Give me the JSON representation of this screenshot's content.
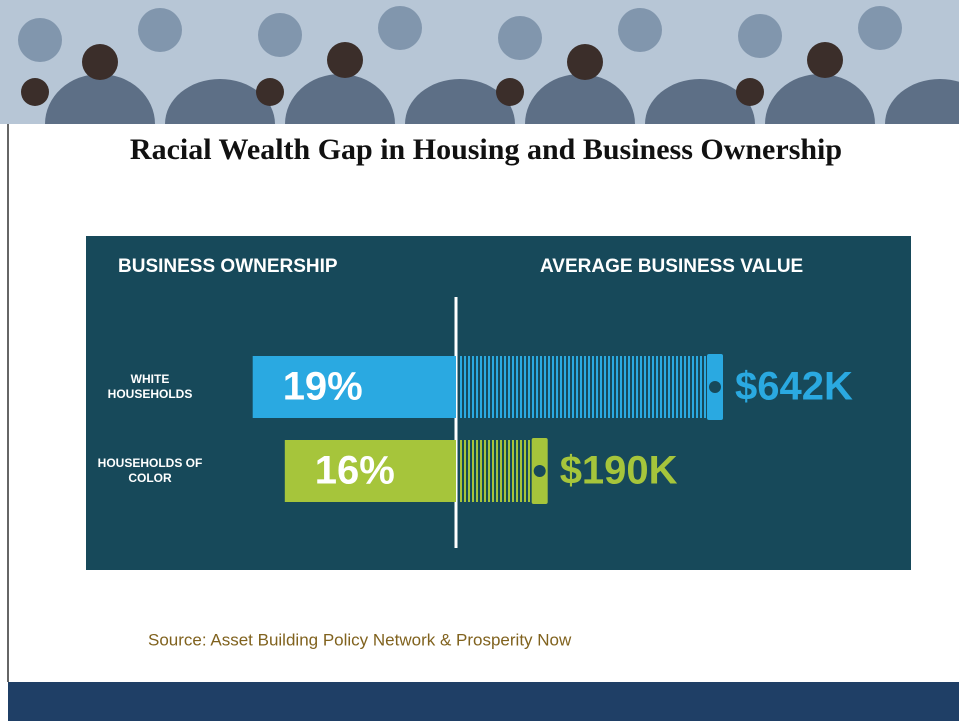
{
  "title": "Racial Wealth Gap in Housing and Business Ownership",
  "source": "Source:  Asset Building Policy Network & Prosperity Now",
  "chart_data": {
    "type": "bar",
    "categories": [
      "WHITE HOUSEHOLDS",
      "HOUSEHOLDS OF COLOR"
    ],
    "series": [
      {
        "name": "BUSINESS OWNERSHIP",
        "colors": [
          "#2aa9e1",
          "#a6c53b"
        ],
        "values": [
          19,
          16
        ],
        "value_labels": [
          "19%",
          "16%"
        ]
      },
      {
        "name": "AVERAGE BUSINESS VALUE",
        "colors": [
          "#2aa9e1",
          "#a6c53b"
        ],
        "values": [
          642000,
          190000
        ],
        "value_labels": [
          "$642K",
          "$190K"
        ]
      }
    ]
  }
}
